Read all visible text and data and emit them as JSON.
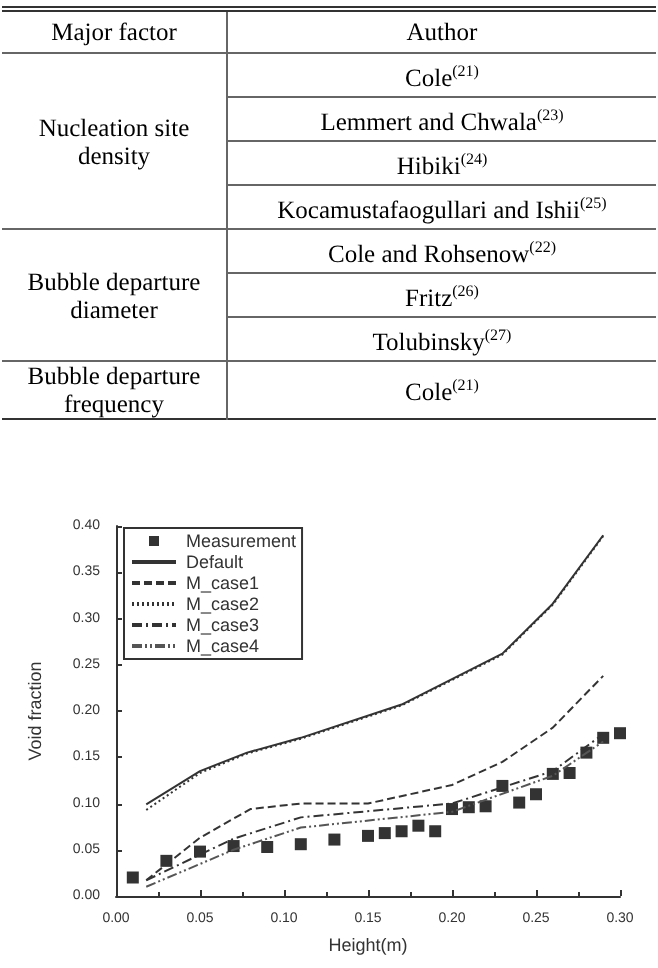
{
  "chart_data": [
    {
      "type": "other",
      "categories": [
        "Major factor",
        "Author"
      ],
      "y_categories": [
        "Nucleation site density",
        "Bubble departure diameter",
        "Bubble departure frequency"
      ],
      "cell_labels": [
        [
          "Cole$^{(21)}$",
          "Lemmert and Chwala$^{(23)}$",
          "Hibiki$^{(24)}$",
          "Kocamustafaogullari and Ishii$^{(25)}$"
        ],
        [
          "Cole and Rohsenow$^{(22)}$",
          "Fritz$^{(26)}$",
          "Tolubinsky$^{(27)}$"
        ],
        [
          "Cole$^{(21)}$"
        ]
      ]
    },
    {
      "type": "line",
      "xlabel": "Height(m)",
      "ylabel": "Void fraction",
      "xlim": [
        0,
        0.3
      ],
      "ylim": [
        0,
        0.4
      ],
      "xticks": [
        {
          "value": 0,
          "label": "0.00"
        },
        {
          "value": 0.05,
          "label": "0.05"
        },
        {
          "value": 0.1,
          "label": "0.10"
        },
        {
          "value": 0.15,
          "label": "0.15"
        },
        {
          "value": 0.2,
          "label": "0.20"
        },
        {
          "value": 0.25,
          "label": "0.25"
        },
        {
          "value": 0.3,
          "label": "0.30"
        }
      ],
      "yticks": [
        {
          "value": 0,
          "label": "0.00"
        },
        {
          "value": 0.05,
          "label": "0.05"
        },
        {
          "value": 0.1,
          "label": "0.10"
        },
        {
          "value": 0.15,
          "label": "0.15"
        },
        {
          "value": 0.2,
          "label": "0.20"
        },
        {
          "value": 0.25,
          "label": "0.25"
        },
        {
          "value": 0.3,
          "label": "0.30"
        },
        {
          "value": 0.35,
          "label": "0.35"
        },
        {
          "value": 0.4,
          "label": "0.40"
        }
      ],
      "legend": "top left",
      "grid": false,
      "series": [
        {
          "name": "Measurement",
          "type": "scatter",
          "marker": "square",
          "color": "#000000",
          "x": [
            0.01,
            0.03,
            0.05,
            0.07,
            0.09,
            0.11,
            0.13,
            0.15,
            0.16,
            0.17,
            0.18,
            0.19,
            0.2,
            0.21,
            0.22,
            0.23,
            0.24,
            0.25,
            0.26,
            0.27,
            0.28,
            0.29,
            0.3
          ],
          "values": [
            0.02,
            0.038,
            0.048,
            0.054,
            0.053,
            0.056,
            0.061,
            0.065,
            0.068,
            0.07,
            0.076,
            0.07,
            0.094,
            0.096,
            0.097,
            0.119,
            0.101,
            0.11,
            0.132,
            0.133,
            0.155,
            0.171,
            0.176
          ]
        },
        {
          "name": "Default",
          "line_style": "solid",
          "color": "#333333",
          "x": [
            0.018,
            0.05,
            0.078,
            0.11,
            0.17,
            0.23,
            0.26,
            0.29
          ],
          "values": [
            0.099,
            0.135,
            0.155,
            0.171,
            0.207,
            0.262,
            0.316,
            0.39
          ]
        },
        {
          "name": "M_case1",
          "line_style": "dashed",
          "color": "#333333",
          "x": [
            0.018,
            0.05,
            0.08,
            0.11,
            0.15,
            0.2,
            0.23,
            0.26,
            0.29
          ],
          "values": [
            0.017,
            0.063,
            0.094,
            0.1,
            0.1,
            0.12,
            0.145,
            0.182,
            0.238
          ]
        },
        {
          "name": "M_case2",
          "line_style": "dotted",
          "color": "#333333",
          "x": [
            0.018,
            0.05,
            0.078,
            0.11,
            0.17,
            0.23,
            0.26,
            0.29
          ],
          "values": [
            0.093,
            0.133,
            0.154,
            0.17,
            0.206,
            0.261,
            0.315,
            0.389
          ]
        },
        {
          "name": "M_case3",
          "line_style": "dashdot",
          "color": "#333333",
          "x": [
            0.018,
            0.07,
            0.11,
            0.2,
            0.26,
            0.29
          ],
          "values": [
            0.017,
            0.062,
            0.085,
            0.1,
            0.135,
            0.175
          ]
        },
        {
          "name": "M_case4",
          "line_style": "dashdotdot",
          "color": "#555555",
          "x": [
            0.018,
            0.07,
            0.11,
            0.2,
            0.26,
            0.29
          ],
          "values": [
            0.01,
            0.05,
            0.074,
            0.091,
            0.13,
            0.167
          ]
        }
      ]
    }
  ]
}
